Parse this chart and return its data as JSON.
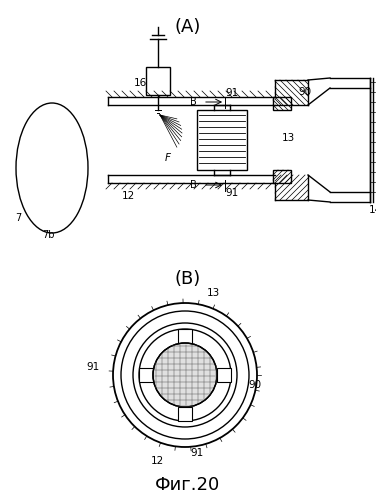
{
  "title_A": "(A)",
  "title_B": "(B)",
  "caption": "Фиг.20",
  "bg_color": "#ffffff",
  "line_color": "#000000"
}
